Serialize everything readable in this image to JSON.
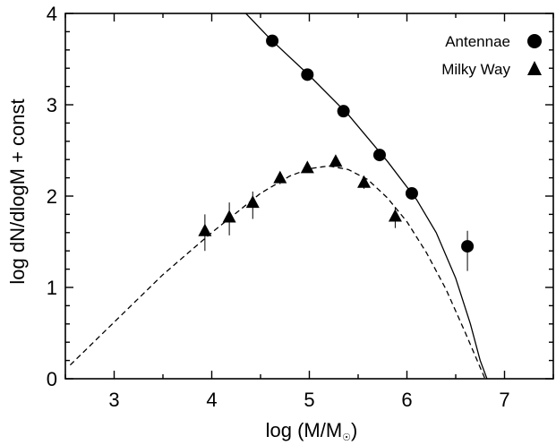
{
  "chart_data": {
    "type": "scatter",
    "xlabel": "log (M/M",
    "xlabel_sub": "☉",
    "xlabel_close": ")",
    "ylabel": "log dN/dlogM + const",
    "xlim": [
      2.5,
      7.5
    ],
    "ylim": [
      0,
      4
    ],
    "xticks": [
      "3",
      "4",
      "5",
      "6",
      "7"
    ],
    "yticks": [
      "0",
      "1",
      "2",
      "3",
      "4"
    ],
    "legend_position": "top-right",
    "series": [
      {
        "name": "Antennae",
        "marker": "circle",
        "points": [
          {
            "x": 4.62,
            "y": 3.7,
            "err_lo": 0.0,
            "err_hi": 0.0
          },
          {
            "x": 4.98,
            "y": 3.33,
            "err_lo": 0.0,
            "err_hi": 0.0
          },
          {
            "x": 5.35,
            "y": 2.93,
            "err_lo": 0.0,
            "err_hi": 0.0
          },
          {
            "x": 5.72,
            "y": 2.45,
            "err_lo": 0.0,
            "err_hi": 0.0
          },
          {
            "x": 6.05,
            "y": 2.03,
            "err_lo": 0.0,
            "err_hi": 0.0
          },
          {
            "x": 6.62,
            "y": 1.45,
            "err_lo": 0.27,
            "err_hi": 0.17
          }
        ]
      },
      {
        "name": "Milky Way",
        "marker": "triangle",
        "points": [
          {
            "x": 3.93,
            "y": 1.62,
            "err_lo": 0.22,
            "err_hi": 0.18
          },
          {
            "x": 4.18,
            "y": 1.77,
            "err_lo": 0.2,
            "err_hi": 0.16
          },
          {
            "x": 4.42,
            "y": 1.93,
            "err_lo": 0.18,
            "err_hi": 0.12
          },
          {
            "x": 4.7,
            "y": 2.2,
            "err_lo": 0.07,
            "err_hi": 0.05
          },
          {
            "x": 4.98,
            "y": 2.31,
            "err_lo": 0.05,
            "err_hi": 0.04
          },
          {
            "x": 5.27,
            "y": 2.38,
            "err_lo": 0.05,
            "err_hi": 0.04
          },
          {
            "x": 5.56,
            "y": 2.15,
            "err_lo": 0.07,
            "err_hi": 0.05
          },
          {
            "x": 5.88,
            "y": 1.78,
            "err_lo": 0.13,
            "err_hi": 0.1
          }
        ]
      }
    ],
    "curves": [
      {
        "style": "solid",
        "x": [
          4.35,
          4.6,
          5.0,
          5.4,
          5.8,
          6.1,
          6.3,
          6.5,
          6.65,
          6.75,
          6.82
        ],
        "y": [
          4.0,
          3.72,
          3.32,
          2.89,
          2.38,
          1.96,
          1.6,
          1.1,
          0.6,
          0.2,
          0.0
        ]
      },
      {
        "style": "dashed",
        "x": [
          2.55,
          3.0,
          3.5,
          4.0,
          4.5,
          4.8,
          5.0,
          5.2,
          5.4,
          5.6,
          5.8,
          6.0,
          6.2,
          6.4,
          6.6,
          6.7,
          6.8
        ],
        "y": [
          0.15,
          0.62,
          1.14,
          1.6,
          2.03,
          2.22,
          2.3,
          2.33,
          2.29,
          2.18,
          1.98,
          1.72,
          1.38,
          0.98,
          0.5,
          0.25,
          0.0
        ]
      }
    ]
  }
}
